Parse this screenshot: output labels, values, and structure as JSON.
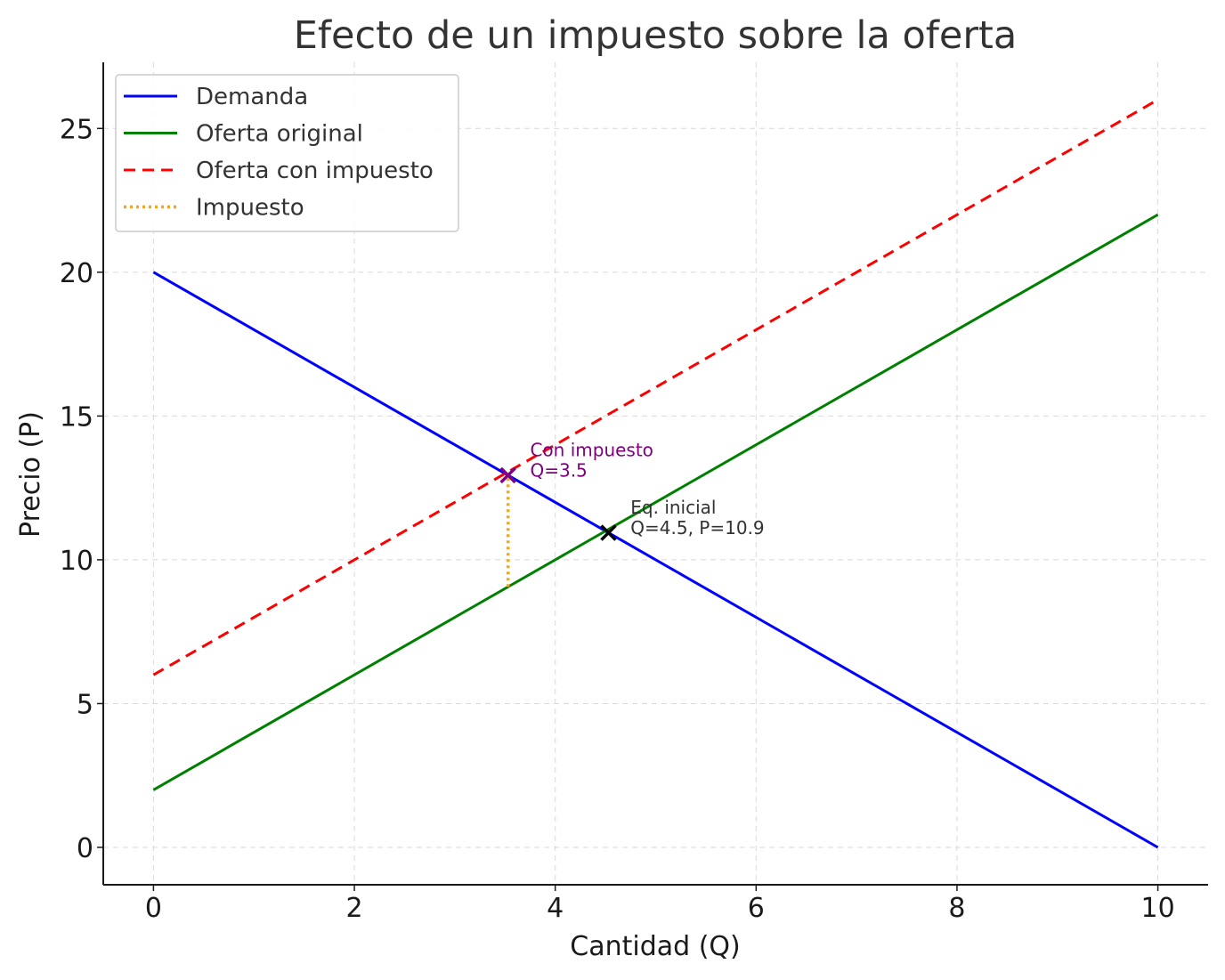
{
  "chart_data": {
    "type": "line",
    "title": "Efecto de un impuesto sobre la oferta",
    "xlabel": "Cantidad (Q)",
    "ylabel": "Precio (P)",
    "xlim": [
      -0.5,
      10.5
    ],
    "ylim": [
      -1.3,
      27.3
    ],
    "xticks": [
      0,
      2,
      4,
      6,
      8,
      10
    ],
    "yticks": [
      0,
      5,
      10,
      15,
      20,
      25
    ],
    "grid": true,
    "legend_position": "upper-left",
    "series": [
      {
        "name": "Demanda",
        "color": "#0000ff",
        "style": "solid",
        "x": [
          0,
          10
        ],
        "y": [
          20,
          0
        ]
      },
      {
        "name": "Oferta original",
        "color": "#008000",
        "style": "solid",
        "x": [
          0,
          10
        ],
        "y": [
          2,
          22
        ]
      },
      {
        "name": "Oferta con impuesto",
        "color": "#ff0000",
        "style": "dashed",
        "x": [
          0,
          10
        ],
        "y": [
          6,
          26
        ]
      },
      {
        "name": "Impuesto",
        "color": "#ffa500",
        "style": "dotted",
        "x": [
          3.53,
          3.53
        ],
        "y": [
          9.06,
          12.94
        ]
      }
    ],
    "markers": [
      {
        "x": 4.53,
        "y": 10.94,
        "color": "#000000",
        "symbol": "x"
      },
      {
        "x": 3.53,
        "y": 12.94,
        "color": "#800080",
        "symbol": "x"
      }
    ],
    "annotations": [
      {
        "lines": [
          "Eq. inicial",
          "Q=4.5, P=10.9"
        ],
        "x": 4.75,
        "y": 11.6,
        "color": "#333333"
      },
      {
        "lines": [
          "Con impuesto",
          "Q=3.5"
        ],
        "x": 3.75,
        "y": 13.6,
        "color": "#800080"
      }
    ]
  }
}
